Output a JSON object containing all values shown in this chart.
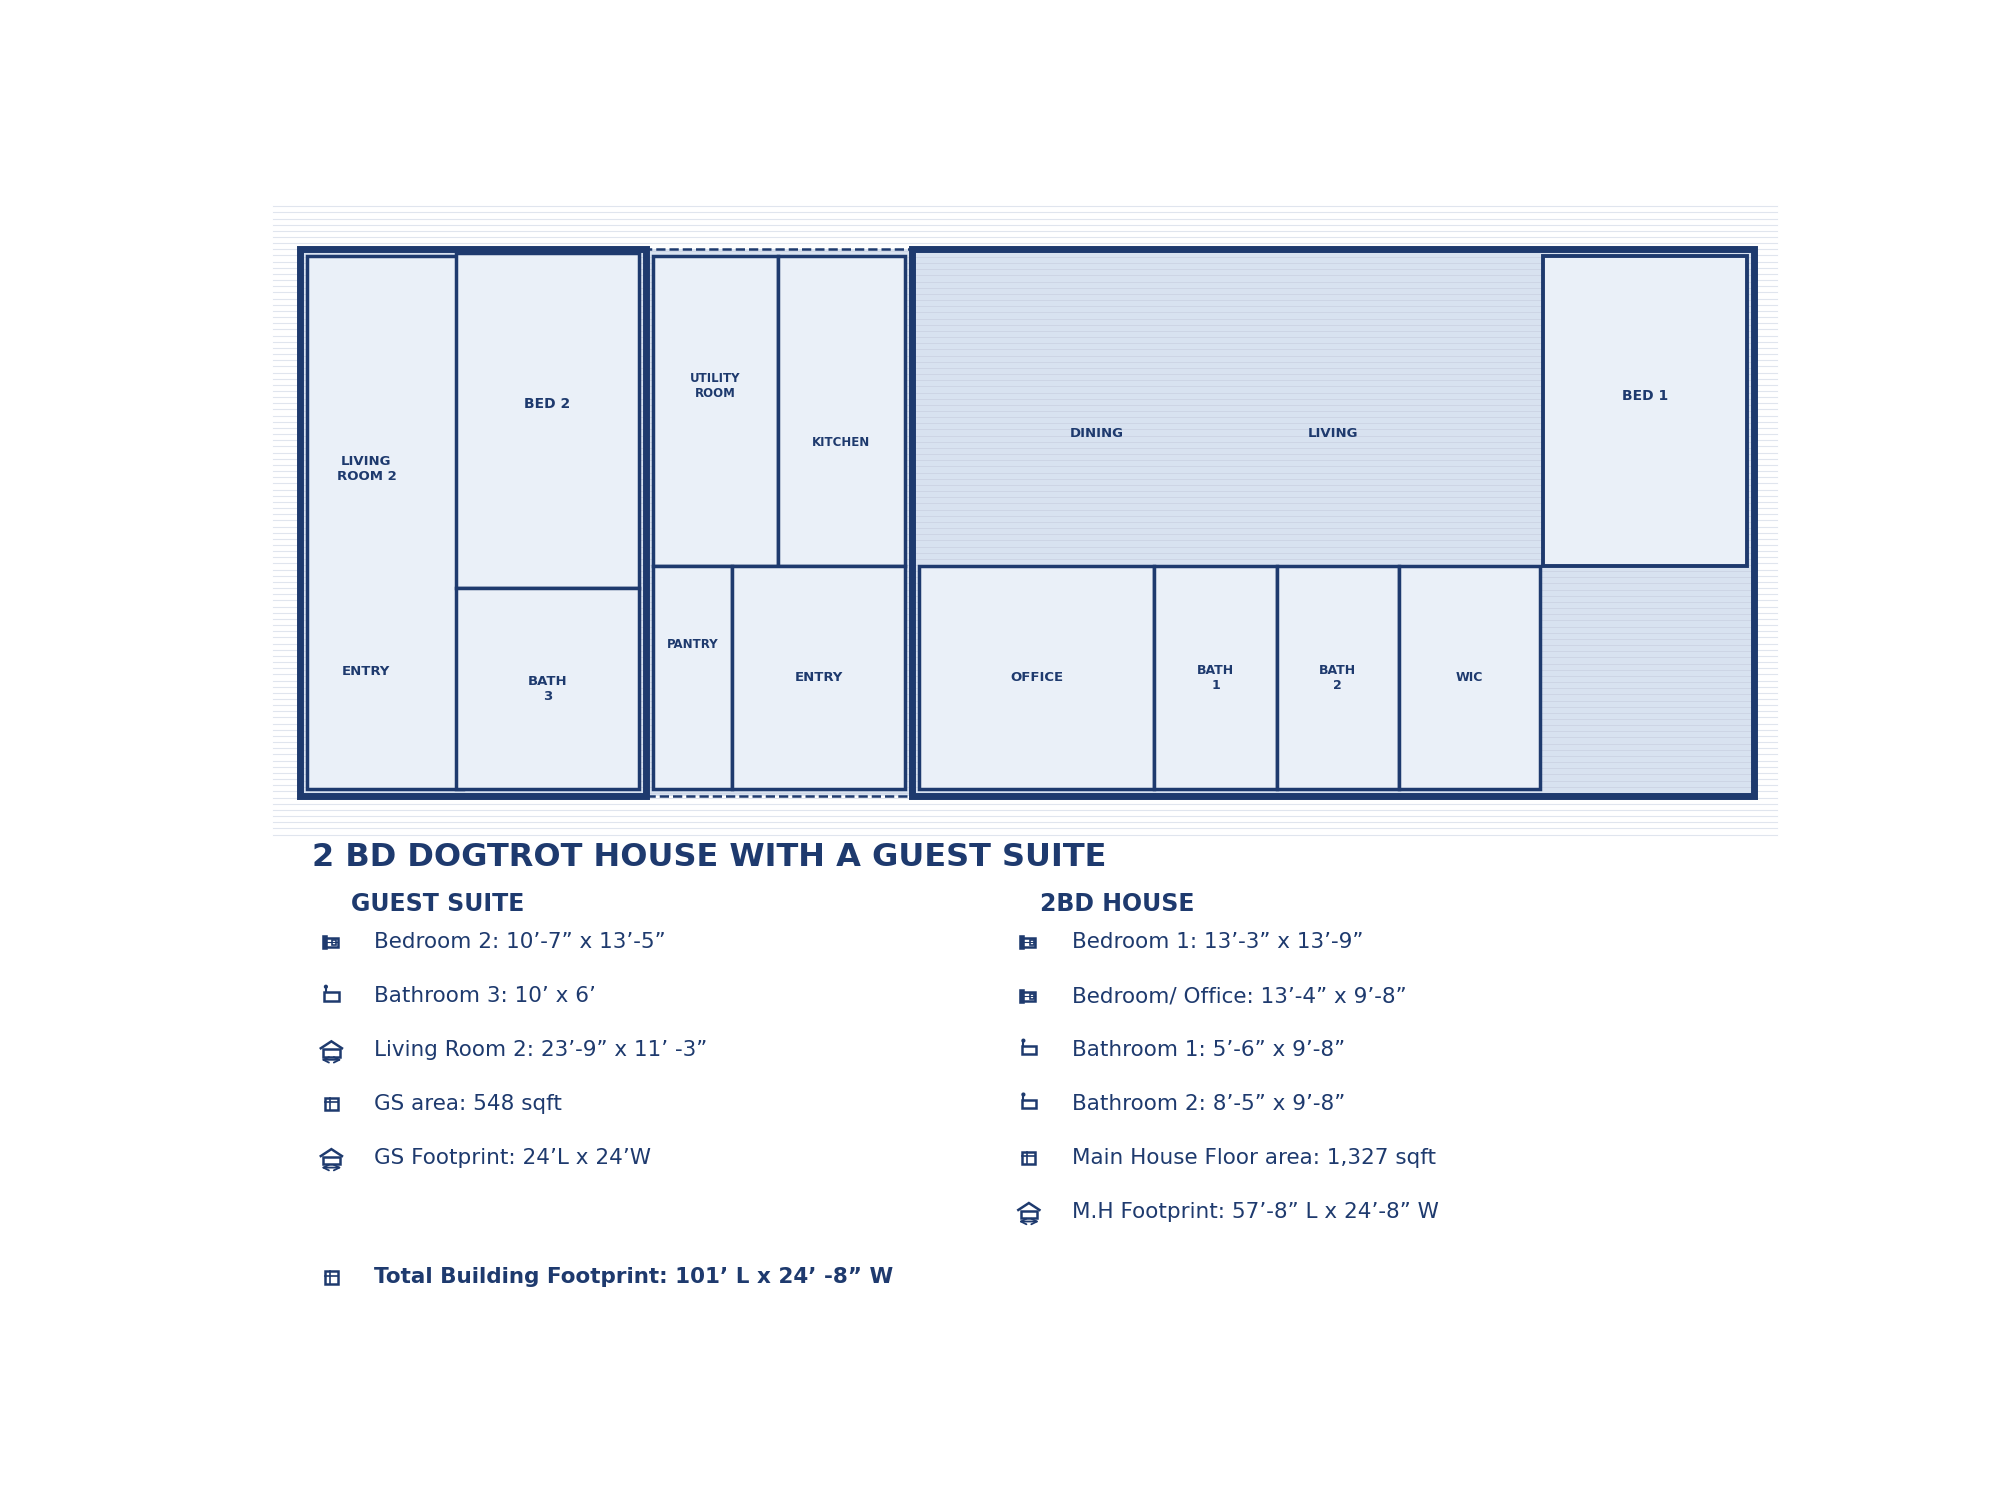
{
  "bg_color": "#ffffff",
  "primary_color": "#1e3a6e",
  "stripe_color": "#c8d0e0",
  "wall_color": "#1e3a6e",
  "room_fill": "#eaf0f8",
  "hatch_fill": "#d8e2f0",
  "title": "2 BD DOGTROT HOUSE WITH A GUEST SUITE",
  "col1_header": "GUEST SUITE",
  "col2_header": "2BD HOUSE",
  "col1_items": [
    [
      "bed",
      "Bedroom 2: 10’-7” x 13’-5”"
    ],
    [
      "bath",
      "Bathroom 3: 10’ x 6’"
    ],
    [
      "house",
      "Living Room 2: 23’-9” x 11’ -3”"
    ],
    [
      "area",
      "GS area: 548 sqft"
    ],
    [
      "footprint",
      "GS Footprint: 24’L x 24’W"
    ]
  ],
  "col2_items": [
    [
      "bed",
      "Bedroom 1: 13’-3” x 13’-9”"
    ],
    [
      "bed",
      "Bedroom/ Office: 13’-4” x 9’-8”"
    ],
    [
      "bath",
      "Bathroom 1: 5’-6” x 9’-8”"
    ],
    [
      "bath",
      "Bathroom 2: 8’-5” x 9’-8”"
    ],
    [
      "area",
      "Main House Floor area: 1,327 sqft"
    ],
    [
      "footprint",
      "M.H Footprint: 57’-8” L x 24’-8” W"
    ]
  ],
  "footer_bold": "Total Building Footprint: 101’ L x 24’ -8” W"
}
